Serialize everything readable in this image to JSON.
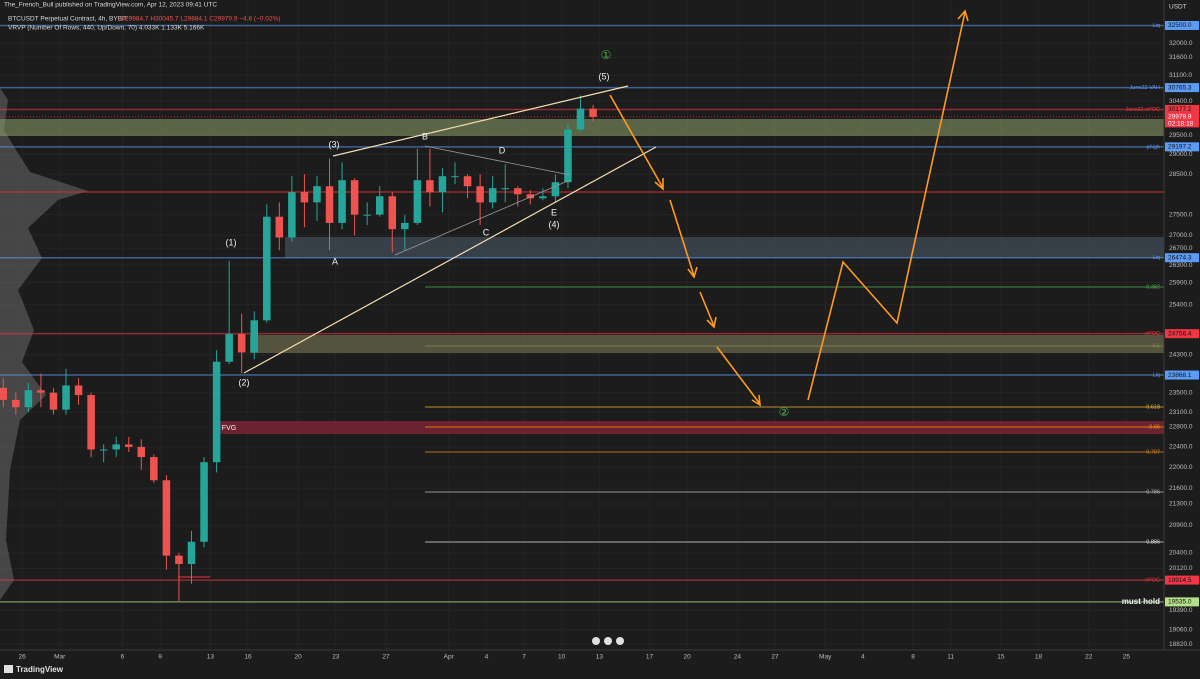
{
  "chart_data": {
    "type": "candlestick",
    "publisher": "The_French_Bull published on TradingView.com, Apr 12, 2023 09:41 UTC",
    "title": "BTCUSDT Perpetual Contract, 4h, BYBIT",
    "ohlc_legend": "O29984.7 H30045.7 L29884.1 C29979.9 −4.8 (−0.02%)",
    "indicator_legend": "VRVP (Number Of Rows, 440, Up/Down, 70) 4.033K 1.133K 5.166K",
    "currency": "USDT",
    "brand": "TradingView",
    "log_scale": true,
    "grid": true,
    "up_color": "#26a69a",
    "down_color": "#ef5350",
    "x": [
      "2023-02-24",
      "2023-02-25",
      "2023-02-26",
      "2023-02-27",
      "2023-02-28",
      "2023-03-01",
      "2023-03-02",
      "2023-03-03",
      "2023-03-04",
      "2023-03-05",
      "2023-03-06",
      "2023-03-07",
      "2023-03-08",
      "2023-03-09",
      "2023-03-10",
      "2023-03-11",
      "2023-03-12",
      "2023-03-13",
      "2023-03-14",
      "2023-03-15",
      "2023-03-16",
      "2023-03-17",
      "2023-03-18",
      "2023-03-19",
      "2023-03-20",
      "2023-03-21",
      "2023-03-22",
      "2023-03-23",
      "2023-03-24",
      "2023-03-25",
      "2023-03-26",
      "2023-03-27",
      "2023-03-28",
      "2023-03-29",
      "2023-03-30",
      "2023-03-31",
      "2023-04-01",
      "2023-04-02",
      "2023-04-03",
      "2023-04-04",
      "2023-04-05",
      "2023-04-06",
      "2023-04-07",
      "2023-04-08",
      "2023-04-09",
      "2023-04-10",
      "2023-04-11",
      "2023-04-12"
    ],
    "open": [
      23600,
      23350,
      23200,
      23550,
      23500,
      23150,
      23650,
      23450,
      22350,
      22350,
      22450,
      22400,
      22200,
      21750,
      20350,
      20200,
      20600,
      22100,
      24150,
      24750,
      24350,
      25050,
      27450,
      26950,
      28050,
      27800,
      28200,
      27300,
      28350,
      27500,
      27500,
      27950,
      27150,
      27300,
      28350,
      28050,
      28450,
      28450,
      28200,
      27800,
      28150,
      28150,
      28000,
      27900,
      27950,
      28300,
      29650,
      30200
    ],
    "high": [
      23800,
      23500,
      23700,
      23900,
      23600,
      24000,
      23800,
      23500,
      22450,
      22600,
      22600,
      22550,
      22250,
      21850,
      20400,
      20800,
      22200,
      24400,
      26400,
      25200,
      25250,
      27750,
      27800,
      28450,
      28500,
      28450,
      28900,
      28800,
      28400,
      27800,
      28200,
      28050,
      27500,
      29150,
      29150,
      28650,
      28800,
      28500,
      28500,
      28450,
      28750,
      28200,
      28100,
      28150,
      28500,
      29800,
      30550,
      30300
    ],
    "low": [
      23200,
      23050,
      23100,
      23200,
      23050,
      23050,
      23250,
      22200,
      22100,
      22200,
      22300,
      21950,
      21700,
      20100,
      19550,
      19850,
      20500,
      21900,
      24100,
      23900,
      24200,
      25000,
      26650,
      26850,
      27200,
      27350,
      26650,
      27150,
      27000,
      27250,
      27450,
      26600,
      26650,
      27250,
      27700,
      27550,
      28250,
      27900,
      27250,
      27650,
      27800,
      27700,
      27750,
      27850,
      27800,
      28150,
      29600,
      29850
    ],
    "close": [
      23350,
      23200,
      23550,
      23500,
      23150,
      23650,
      23450,
      22350,
      22350,
      22450,
      22400,
      22200,
      21750,
      20350,
      20200,
      20600,
      22100,
      24150,
      24750,
      24350,
      25050,
      27450,
      26950,
      28050,
      27800,
      28200,
      27300,
      28350,
      27500,
      27500,
      27950,
      27150,
      27300,
      28350,
      28050,
      28450,
      28450,
      28200,
      27800,
      28150,
      28150,
      28000,
      27900,
      27950,
      28300,
      29650,
      30200,
      29979.9
    ],
    "xlim": [
      "2023-02-24",
      "2023-05-28"
    ],
    "xticks": [
      {
        "value": "2023-02-26",
        "label": "26"
      },
      {
        "value": "2023-03-01",
        "label": "Mar"
      },
      {
        "value": "2023-03-06",
        "label": "6"
      },
      {
        "value": "2023-03-09",
        "label": "9"
      },
      {
        "value": "2023-03-13",
        "label": "13"
      },
      {
        "value": "2023-03-16",
        "label": "16"
      },
      {
        "value": "2023-03-20",
        "label": "20"
      },
      {
        "value": "2023-03-23",
        "label": "23"
      },
      {
        "value": "2023-03-27",
        "label": "27"
      },
      {
        "value": "2023-04-01",
        "label": "Apr"
      },
      {
        "value": "2023-04-04",
        "label": "4"
      },
      {
        "value": "2023-04-07",
        "label": "7"
      },
      {
        "value": "2023-04-10",
        "label": "10"
      },
      {
        "value": "2023-04-13",
        "label": "13"
      },
      {
        "value": "2023-04-17",
        "label": "17"
      },
      {
        "value": "2023-04-20",
        "label": "20"
      },
      {
        "value": "2023-04-24",
        "label": "24"
      },
      {
        "value": "2023-04-27",
        "label": "27"
      },
      {
        "value": "2023-05-01",
        "label": "May"
      },
      {
        "value": "2023-05-04",
        "label": "4"
      },
      {
        "value": "2023-05-08",
        "label": "8"
      },
      {
        "value": "2023-05-11",
        "label": "11"
      },
      {
        "value": "2023-05-15",
        "label": "15"
      },
      {
        "value": "2023-05-18",
        "label": "18"
      },
      {
        "value": "2023-05-22",
        "label": "22"
      },
      {
        "value": "2023-05-25",
        "label": "25"
      }
    ],
    "ylim": [
      18640,
      33240
    ],
    "yticks": [
      {
        "value": 32000,
        "label": "32000.0"
      },
      {
        "value": 31600,
        "label": "31600.0"
      },
      {
        "value": 31100,
        "label": "31100.0"
      },
      {
        "value": 30400,
        "label": "30400.0"
      },
      {
        "value": 29500,
        "label": "29500.0"
      },
      {
        "value": 29000,
        "label": "29000.0"
      },
      {
        "value": 28500,
        "label": "28500.0"
      },
      {
        "value": 27500,
        "label": "27500.0"
      },
      {
        "value": 27000,
        "label": "27000.0"
      },
      {
        "value": 26700,
        "label": "26700.0"
      },
      {
        "value": 26300,
        "label": "26300.0"
      },
      {
        "value": 25900,
        "label": "25900.0"
      },
      {
        "value": 25400,
        "label": "25400.0"
      },
      {
        "value": 24300,
        "label": "24300.0"
      },
      {
        "value": 23500,
        "label": "23500.0"
      },
      {
        "value": 23100,
        "label": "23100.0"
      },
      {
        "value": 22800,
        "label": "22800.0"
      },
      {
        "value": 22400,
        "label": "22400.0"
      },
      {
        "value": 22000,
        "label": "22000.0"
      },
      {
        "value": 21600,
        "label": "21600.0"
      },
      {
        "value": 21300,
        "label": "21300.0"
      },
      {
        "value": 20900,
        "label": "20900.0"
      },
      {
        "value": 20400,
        "label": "20400.0"
      },
      {
        "value": 20120,
        "label": "20120.0"
      },
      {
        "value": 19390,
        "label": "19390.0"
      },
      {
        "value": 19060,
        "label": "19060.0"
      },
      {
        "value": 18820,
        "label": "18820.0"
      }
    ],
    "levels": [
      {
        "name": "Liq",
        "value": 32500,
        "label": "32500.0",
        "color": "#5b9cf6"
      },
      {
        "name": "June22 VAH",
        "value": 30765.3,
        "color": "#5b9cf6"
      },
      {
        "name": "June22 nPOC",
        "value": 30177.2,
        "color": "#f23645"
      },
      {
        "name": "phigh",
        "value": 29197.2,
        "color": "#5b9cf6"
      },
      {
        "name": "Liq",
        "value": 26474.3,
        "color": "#5b9cf6"
      },
      {
        "name": "nPOC",
        "value": 24756.4,
        "color": "#f23645"
      },
      {
        "name": "Liq",
        "value": 23868.1,
        "color": "#5b9cf6"
      },
      {
        "name": "nPOC",
        "value": 19914.5,
        "color": "#f23645"
      },
      {
        "name": "must hold",
        "value": 19535,
        "label": "19535.0",
        "color": "#b5e08a"
      }
    ],
    "last_price": 29979.9,
    "last_price_color": "#f23645",
    "countdown": "02:18:18",
    "fib_levels": [
      0.382,
      0.5,
      0.618,
      0.66,
      0.707,
      0.786,
      0.886
    ],
    "annotations": [
      "(1)",
      "(2)",
      "(3)",
      "(4)",
      "(5)",
      "A",
      "B",
      "C",
      "D",
      "E",
      "①",
      "②",
      "FVG"
    ]
  }
}
